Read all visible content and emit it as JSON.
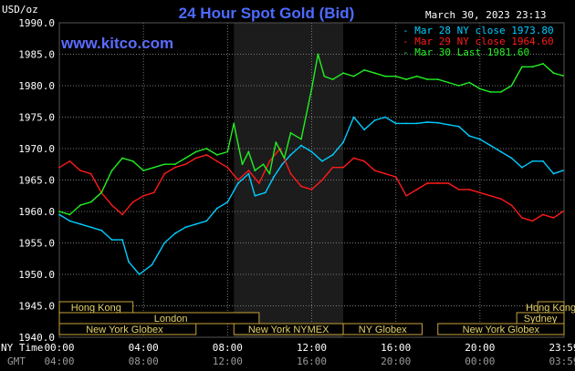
{
  "header": {
    "title": "24 Hour Spot Gold (Bid)",
    "timestamp": "March 30, 2023 23:13",
    "unit": "USD/oz",
    "website": "www.kitco.com"
  },
  "axis_labels": {
    "ny_time": "NY Time",
    "gmt": "GMT"
  },
  "colors": {
    "background": "#000000",
    "plot_background": "#000000",
    "grid": "#7a7a7a",
    "shaded_session": "#1c1c1c",
    "title": "#4d6bff",
    "band_border": "#c8a23a",
    "band_text": "#e6d36a",
    "series_mar28": "#00ccff",
    "series_mar29": "#ff1a1a",
    "series_mar30": "#22ee22"
  },
  "sessions": [
    {
      "label": "Hong Kong",
      "start": 0,
      "end": 3.5,
      "row": 0
    },
    {
      "label": "Hong Kong",
      "start": 22.75,
      "end": 24,
      "row": 0
    },
    {
      "label": "London",
      "start": 0,
      "end": 9.5,
      "row": 1,
      "label_at": 5.3
    },
    {
      "label": "Sydney",
      "start": 21.75,
      "end": 24,
      "row": 1
    },
    {
      "label": "New York Globex",
      "start": 0,
      "end": 6.5,
      "row": 2,
      "label_at": 3.1
    },
    {
      "label": "New York NYMEX",
      "start": 8.3,
      "end": 13.5,
      "row": 2
    },
    {
      "label": "NY Globex",
      "start": 13.5,
      "end": 17.25,
      "row": 2
    },
    {
      "label": "New York Globex",
      "start": 18,
      "end": 24,
      "row": 2
    }
  ],
  "chart_data": {
    "type": "line",
    "title": "24 Hour Spot Gold (Bid)",
    "ylabel": "USD/oz",
    "ylim": [
      1940,
      1990
    ],
    "xlim": [
      0,
      24
    ],
    "y_ticks": [
      "1990.0",
      "1985.0",
      "1980.0",
      "1975.0",
      "1970.0",
      "1965.0",
      "1960.0",
      "1955.0",
      "1950.0",
      "1945.0",
      "1940.0"
    ],
    "x_ticks_ny": [
      "00:00",
      "04:00",
      "08:00",
      "12:00",
      "16:00",
      "20:00",
      "23:59"
    ],
    "x_ticks_gmt": [
      "04:00",
      "08:00",
      "12:00",
      "16:00",
      "20:00",
      "00:00",
      "03:59"
    ],
    "grid": true,
    "shaded_range": [
      8.3,
      13.5
    ],
    "legend_position": "top-right",
    "series": [
      {
        "name": "Mar 28 NY close 1973.80",
        "color": "#00ccff",
        "x": [
          0,
          0.5,
          1,
          1.5,
          2,
          2.5,
          3,
          3.3,
          3.8,
          4.4,
          5,
          5.5,
          6,
          6.5,
          7,
          7.5,
          8,
          8.5,
          9,
          9.3,
          9.8,
          10.2,
          10.6,
          11,
          11.5,
          12,
          12.5,
          13,
          13.5,
          14,
          14.5,
          15,
          15.5,
          16,
          16.5,
          17,
          17.5,
          18,
          18.5,
          19,
          19.5,
          20,
          20.5,
          21,
          21.5,
          22,
          22.5,
          23,
          23.5,
          23.95
        ],
        "y": [
          1959.5,
          1958.5,
          1958,
          1957.5,
          1957,
          1955.5,
          1955.5,
          1952,
          1950,
          1951.5,
          1955,
          1956.5,
          1957.5,
          1958,
          1958.5,
          1960.5,
          1961.5,
          1964.5,
          1966,
          1962.5,
          1963,
          1965.5,
          1967.5,
          1969,
          1970.5,
          1969.5,
          1968,
          1969,
          1971,
          1975,
          1973,
          1974.5,
          1975,
          1974,
          1974,
          1974,
          1974.2,
          1974.1,
          1973.8,
          1973.5,
          1972,
          1971.5,
          1970.5,
          1969.5,
          1968.5,
          1967,
          1968,
          1968,
          1966,
          1966.5
        ]
      },
      {
        "name": "Mar 29 NY close 1964.60",
        "color": "#ff1a1a",
        "x": [
          0,
          0.5,
          1,
          1.5,
          2,
          2.5,
          3,
          3.5,
          4,
          4.5,
          5,
          5.5,
          6,
          6.5,
          7,
          7.5,
          8,
          8.5,
          9,
          9.5,
          10,
          10.5,
          11,
          11.5,
          12,
          12.5,
          13,
          13.5,
          14,
          14.5,
          15,
          15.5,
          16,
          16.5,
          17,
          17.5,
          18,
          18.5,
          19,
          19.5,
          20,
          20.5,
          21,
          21.5,
          22,
          22.5,
          23,
          23.5,
          23.95
        ],
        "y": [
          1967,
          1968,
          1966.5,
          1966,
          1963,
          1961,
          1959.5,
          1961.5,
          1962.5,
          1963,
          1966,
          1967,
          1967.5,
          1968.5,
          1969,
          1968,
          1967,
          1965,
          1966.5,
          1964.5,
          1968,
          1970,
          1966,
          1964,
          1963.5,
          1965,
          1967,
          1967,
          1968.5,
          1968,
          1966.5,
          1966,
          1965.5,
          1962.5,
          1963.5,
          1964.5,
          1964.5,
          1964.5,
          1963.5,
          1963.5,
          1963,
          1962.5,
          1962,
          1961,
          1959,
          1958.5,
          1959.5,
          1959,
          1960
        ]
      },
      {
        "name": "Mar 30 Last 1981.60",
        "color": "#22ee22",
        "x": [
          0,
          0.5,
          1,
          1.5,
          2,
          2.5,
          3,
          3.5,
          4,
          4.5,
          5,
          5.5,
          6,
          6.5,
          7,
          7.5,
          8,
          8.3,
          8.7,
          9,
          9.3,
          9.7,
          10,
          10.3,
          10.7,
          11,
          11.5,
          12,
          12.3,
          12.6,
          13,
          13.5,
          14,
          14.5,
          15,
          15.5,
          16,
          16.5,
          17,
          17.5,
          18,
          18.5,
          19,
          19.5,
          20,
          20.5,
          21,
          21.5,
          22,
          22.5,
          23,
          23.5,
          23.95
        ],
        "y": [
          1960,
          1959.5,
          1961,
          1961.5,
          1963,
          1966.5,
          1968.5,
          1968,
          1966.5,
          1967,
          1967.5,
          1967.5,
          1968.5,
          1969.5,
          1970,
          1969,
          1969.5,
          1974,
          1967.5,
          1969.5,
          1966.5,
          1967.5,
          1966,
          1971,
          1968.5,
          1972.5,
          1971.5,
          1979.5,
          1985,
          1981.5,
          1981,
          1982,
          1981.5,
          1982.5,
          1982,
          1981.5,
          1981.5,
          1981,
          1981.5,
          1981,
          1981,
          1980.5,
          1980,
          1980.5,
          1979.5,
          1979,
          1979,
          1980,
          1983,
          1983,
          1983.5,
          1982,
          1981.6
        ]
      }
    ]
  }
}
